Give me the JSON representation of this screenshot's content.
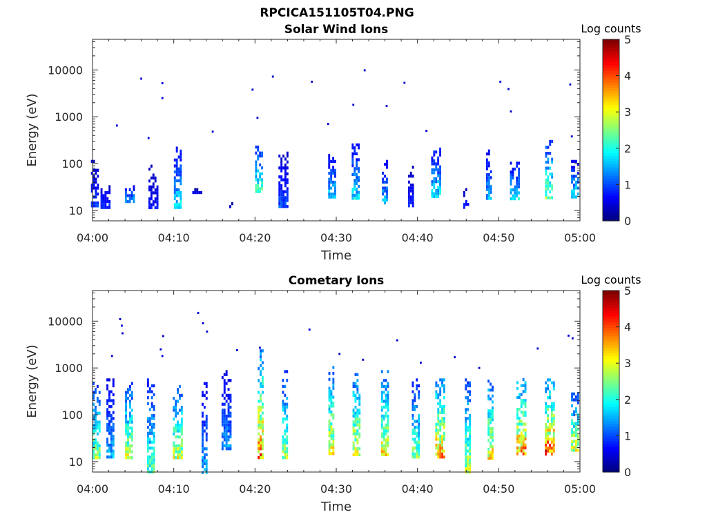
{
  "figure": {
    "main_title": "RPCICA151105T04.PNG"
  },
  "chart_data": [
    {
      "type": "heatmap",
      "title": "Solar Wind Ions",
      "xlabel": "Time",
      "ylabel": "Energy (eV)",
      "x_tick_labels": [
        "04:00",
        "04:10",
        "04:20",
        "04:30",
        "04:40",
        "04:50",
        "05:00"
      ],
      "x_range_minutes": [
        0,
        60
      ],
      "y_scale": "log",
      "y_tick_labels": [
        "10",
        "100",
        "1000",
        "10000"
      ],
      "y_range_eV": [
        6,
        45000
      ],
      "colorbar": {
        "label": "Log counts",
        "range": [
          0,
          5
        ],
        "tick_labels": [
          "0",
          "1",
          "2",
          "3",
          "4",
          "5"
        ],
        "colormap": "jet"
      },
      "bursts": [
        {
          "t": 0.3,
          "lo": 12,
          "hi": 120,
          "level": 1.0
        },
        {
          "t": 1.6,
          "lo": 12,
          "hi": 40,
          "level": 0.9
        },
        {
          "t": 4.6,
          "lo": 15,
          "hi": 40,
          "level": 1.5
        },
        {
          "t": 7.5,
          "lo": 12,
          "hi": 95,
          "level": 0.7
        },
        {
          "t": 10.5,
          "lo": 12,
          "hi": 230,
          "level": 1.8
        },
        {
          "t": 12.9,
          "lo": 25,
          "hi": 30,
          "level": 0.6
        },
        {
          "t": 17.2,
          "lo": 12,
          "hi": 15,
          "level": 0.6
        },
        {
          "t": 20.5,
          "lo": 25,
          "hi": 280,
          "level": 2.2
        },
        {
          "t": 23.5,
          "lo": 12,
          "hi": 180,
          "level": 1.0
        },
        {
          "t": 29.5,
          "lo": 20,
          "hi": 160,
          "level": 1.7
        },
        {
          "t": 32.4,
          "lo": 18,
          "hi": 270,
          "level": 1.8
        },
        {
          "t": 36.0,
          "lo": 14,
          "hi": 120,
          "level": 1.6
        },
        {
          "t": 39.2,
          "lo": 12,
          "hi": 90,
          "level": 0.8
        },
        {
          "t": 42.3,
          "lo": 20,
          "hi": 220,
          "level": 1.9
        },
        {
          "t": 46.0,
          "lo": 12,
          "hi": 30,
          "level": 0.8
        },
        {
          "t": 48.8,
          "lo": 18,
          "hi": 200,
          "level": 1.5
        },
        {
          "t": 52.0,
          "lo": 18,
          "hi": 110,
          "level": 1.8
        },
        {
          "t": 56.2,
          "lo": 18,
          "hi": 320,
          "level": 2.6
        },
        {
          "t": 59.4,
          "lo": 20,
          "hi": 120,
          "level": 1.8
        }
      ],
      "sparse_points": [
        {
          "t": 3.0,
          "e": 650
        },
        {
          "t": 6.0,
          "e": 6500
        },
        {
          "t": 6.9,
          "e": 350
        },
        {
          "t": 8.6,
          "e": 5200
        },
        {
          "t": 8.6,
          "e": 2500
        },
        {
          "t": 14.8,
          "e": 480
        },
        {
          "t": 19.7,
          "e": 3800
        },
        {
          "t": 20.3,
          "e": 950
        },
        {
          "t": 22.2,
          "e": 7200
        },
        {
          "t": 27.0,
          "e": 5600
        },
        {
          "t": 29.0,
          "e": 700
        },
        {
          "t": 32.1,
          "e": 1800
        },
        {
          "t": 33.5,
          "e": 9800
        },
        {
          "t": 36.2,
          "e": 1700
        },
        {
          "t": 38.4,
          "e": 5300
        },
        {
          "t": 41.1,
          "e": 500
        },
        {
          "t": 50.2,
          "e": 5600
        },
        {
          "t": 51.2,
          "e": 3900
        },
        {
          "t": 51.5,
          "e": 1300
        },
        {
          "t": 58.8,
          "e": 4900
        },
        {
          "t": 59.0,
          "e": 380
        }
      ]
    },
    {
      "type": "heatmap",
      "title": "Cometary Ions",
      "xlabel": "Time",
      "ylabel": "Energy (eV)",
      "x_tick_labels": [
        "04:00",
        "04:10",
        "04:20",
        "04:30",
        "04:40",
        "04:50",
        "05:00"
      ],
      "x_range_minutes": [
        0,
        60
      ],
      "y_scale": "log",
      "y_tick_labels": [
        "10",
        "100",
        "1000",
        "10000"
      ],
      "y_range_eV": [
        6,
        45000
      ],
      "colorbar": {
        "label": "Log counts",
        "range": [
          0,
          5
        ],
        "tick_labels": [
          "0",
          "1",
          "2",
          "3",
          "4",
          "5"
        ],
        "colormap": "jet"
      },
      "bursts": [
        {
          "t": 0.5,
          "lo": 12,
          "hi": 500,
          "level": 2.6
        },
        {
          "t": 2.2,
          "lo": 12,
          "hi": 600,
          "level": 1.5
        },
        {
          "t": 4.5,
          "lo": 12,
          "hi": 500,
          "level": 2.8
        },
        {
          "t": 7.2,
          "lo": 6,
          "hi": 600,
          "level": 2.2
        },
        {
          "t": 10.5,
          "lo": 12,
          "hi": 500,
          "level": 2.8
        },
        {
          "t": 13.8,
          "lo": 6,
          "hi": 500,
          "level": 1.5
        },
        {
          "t": 16.5,
          "lo": 20,
          "hi": 900,
          "level": 1.4
        },
        {
          "t": 20.7,
          "lo": 12,
          "hi": 2500,
          "level": 3.8
        },
        {
          "t": 23.7,
          "lo": 12,
          "hi": 900,
          "level": 2.6
        },
        {
          "t": 29.4,
          "lo": 14,
          "hi": 1100,
          "level": 3.2
        },
        {
          "t": 32.5,
          "lo": 14,
          "hi": 900,
          "level": 3.1
        },
        {
          "t": 36.0,
          "lo": 14,
          "hi": 900,
          "level": 3.1
        },
        {
          "t": 39.8,
          "lo": 12,
          "hi": 600,
          "level": 2.5
        },
        {
          "t": 42.8,
          "lo": 12,
          "hi": 600,
          "level": 3.6
        },
        {
          "t": 46.2,
          "lo": 6,
          "hi": 600,
          "level": 2.8
        },
        {
          "t": 49.0,
          "lo": 12,
          "hi": 650,
          "level": 3.2
        },
        {
          "t": 52.8,
          "lo": 14,
          "hi": 700,
          "level": 3.7
        },
        {
          "t": 56.3,
          "lo": 14,
          "hi": 600,
          "level": 4.0
        },
        {
          "t": 59.4,
          "lo": 18,
          "hi": 300,
          "level": 3.0
        }
      ],
      "sparse_points": [
        {
          "t": 3.4,
          "e": 11000
        },
        {
          "t": 3.6,
          "e": 8000
        },
        {
          "t": 3.7,
          "e": 5500
        },
        {
          "t": 2.4,
          "e": 1800
        },
        {
          "t": 8.4,
          "e": 2500
        },
        {
          "t": 8.6,
          "e": 1800
        },
        {
          "t": 8.7,
          "e": 4800
        },
        {
          "t": 13.0,
          "e": 15000
        },
        {
          "t": 13.6,
          "e": 9000
        },
        {
          "t": 14.1,
          "e": 6000
        },
        {
          "t": 17.8,
          "e": 2400
        },
        {
          "t": 20.6,
          "e": 2700
        },
        {
          "t": 26.7,
          "e": 6600
        },
        {
          "t": 30.4,
          "e": 2000
        },
        {
          "t": 33.3,
          "e": 1500
        },
        {
          "t": 37.5,
          "e": 3900
        },
        {
          "t": 40.4,
          "e": 1300
        },
        {
          "t": 44.6,
          "e": 1700
        },
        {
          "t": 47.6,
          "e": 1000
        },
        {
          "t": 54.8,
          "e": 2600
        },
        {
          "t": 58.6,
          "e": 4900
        },
        {
          "t": 59.1,
          "e": 4300
        }
      ]
    }
  ]
}
